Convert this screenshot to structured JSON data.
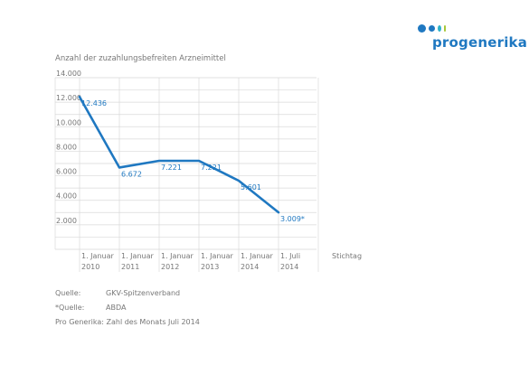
{
  "brand": {
    "name": "progenerika",
    "dot_colors": [
      "#1f78c1",
      "#1f78c1",
      "#2fb3c9",
      "#a7c739"
    ]
  },
  "chart_data": {
    "type": "line",
    "title": "Anzahl der zuzahlungsbefreiten Arzneimittel",
    "xlabel": "Stichtag",
    "ylabel": "",
    "categories": [
      [
        "1. Januar",
        "2010"
      ],
      [
        "1. Januar",
        "2011"
      ],
      [
        "1. Januar",
        "2012"
      ],
      [
        "1. Januar",
        "2013"
      ],
      [
        "1. Januar",
        "2014"
      ],
      [
        "1. Juli",
        "2014"
      ]
    ],
    "values": [
      12436,
      6672,
      7221,
      7221,
      5601,
      3009
    ],
    "data_labels": [
      "12.436",
      "6.672",
      "7.221",
      "7.221",
      "5.601",
      "3.009*"
    ],
    "ylim": [
      0,
      14000
    ],
    "yticks": [
      2000,
      4000,
      6000,
      8000,
      10000,
      12000,
      14000
    ],
    "ytick_labels": [
      "2.000",
      "4.000",
      "6.000",
      "8.000",
      "10.000",
      "12.000",
      "14.000"
    ],
    "grid": true,
    "line_color": "#1f78c1"
  },
  "sources": [
    {
      "label": "Quelle:",
      "value": "GKV-Spitzenverband"
    },
    {
      "label": "*Quelle:",
      "value": "ABDA"
    }
  ],
  "footer": "Pro Generika: Zahl des Monats Juli 2014"
}
